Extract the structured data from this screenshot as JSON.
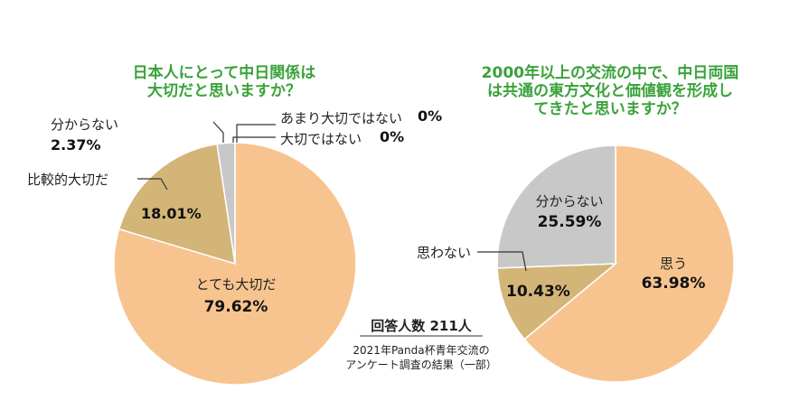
{
  "chart_data": [
    {
      "type": "pie",
      "title": "日本人にとって中日関係は大切だと思いますか？",
      "title_lines": [
        "日本人にとって中日関係は",
        "大切だと思いますか？"
      ],
      "slices": [
        {
          "label": "とても大切だ",
          "value": 79.62,
          "text": "79.62%",
          "color": "#f7c48f"
        },
        {
          "label": "比較的大切だ",
          "value": 18.01,
          "text": "18.01%",
          "color": "#d3b578"
        },
        {
          "label": "分からない",
          "value": 2.37,
          "text": "2.37%",
          "color": "#c8c8c8"
        },
        {
          "label": "あまり大切ではない",
          "value": 0,
          "text": "0%",
          "color": "#c8c8c8"
        },
        {
          "label": "大切ではない",
          "value": 0,
          "text": "0%",
          "color": "#c8c8c8"
        }
      ]
    },
    {
      "type": "pie",
      "title": "2000年以上の交流の中で、中日両国は共通の東方文化と価値観を形成してきたと思いますか？",
      "title_lines": [
        "2000年以上の交流の中で、中日両国",
        "は共通の東方文化と価値観を形成し",
        "てきたと思いますか？"
      ],
      "slices": [
        {
          "label": "思う",
          "value": 63.98,
          "text": "63.98%",
          "color": "#f7c48f"
        },
        {
          "label": "思わない",
          "value": 10.43,
          "text": "10.43%",
          "color": "#d3b578"
        },
        {
          "label": "分からない",
          "value": 25.59,
          "text": "25.59%",
          "color": "#c8c8c8"
        }
      ]
    }
  ],
  "footer": {
    "respondents": "回答人数 211人",
    "source_line1": "2021年Panda杯青年交流の",
    "source_line2": "アンケート調査の結果（一部）"
  }
}
